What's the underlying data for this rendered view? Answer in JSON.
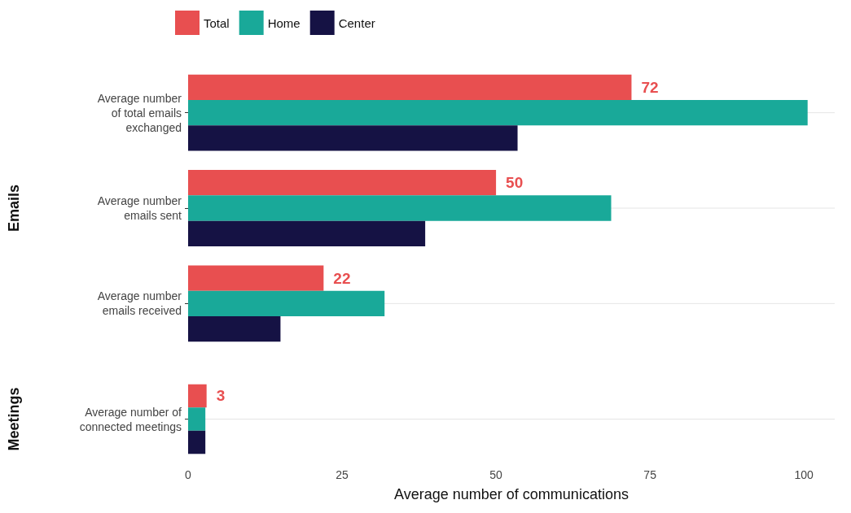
{
  "chart_data": [
    {
      "type": "bar",
      "orientation": "horizontal",
      "ylabel": "Emails",
      "categories": [
        "Average number\nof total emails\nexchanged",
        "Average number\nemails sent",
        "Average number\nemails received"
      ],
      "series": [
        {
          "name": "Total",
          "color": "#e84f50",
          "values": [
            72,
            50,
            22
          ],
          "value_labels": [
            "72",
            "50",
            "22"
          ]
        },
        {
          "name": "Home",
          "color": "#19a999",
          "values": [
            100.6,
            68.7,
            31.9
          ]
        },
        {
          "name": "Center",
          "color": "#151244",
          "values": [
            53.5,
            38.5,
            15
          ]
        }
      ],
      "xlim": [
        0,
        105
      ],
      "xticks": [
        0,
        25,
        50,
        75,
        100
      ],
      "grid": "y",
      "legend": "top left",
      "tick_labels": "y"
    },
    {
      "type": "bar",
      "orientation": "horizontal",
      "ylabel": "Meetings",
      "xlabel": "Average number of communications",
      "categories": [
        "Average number of\nconnected meetings"
      ],
      "series": [
        {
          "color": "#e84f50",
          "values": [
            3
          ],
          "value_labels": [
            "3"
          ]
        },
        {
          "color": "#19a999",
          "values": [
            2.8
          ]
        },
        {
          "color": "#151244",
          "values": [
            2.8
          ]
        }
      ],
      "xlim": [
        0,
        105
      ],
      "xticks": [
        0,
        25,
        50,
        75,
        100
      ],
      "grid": "y"
    }
  ]
}
